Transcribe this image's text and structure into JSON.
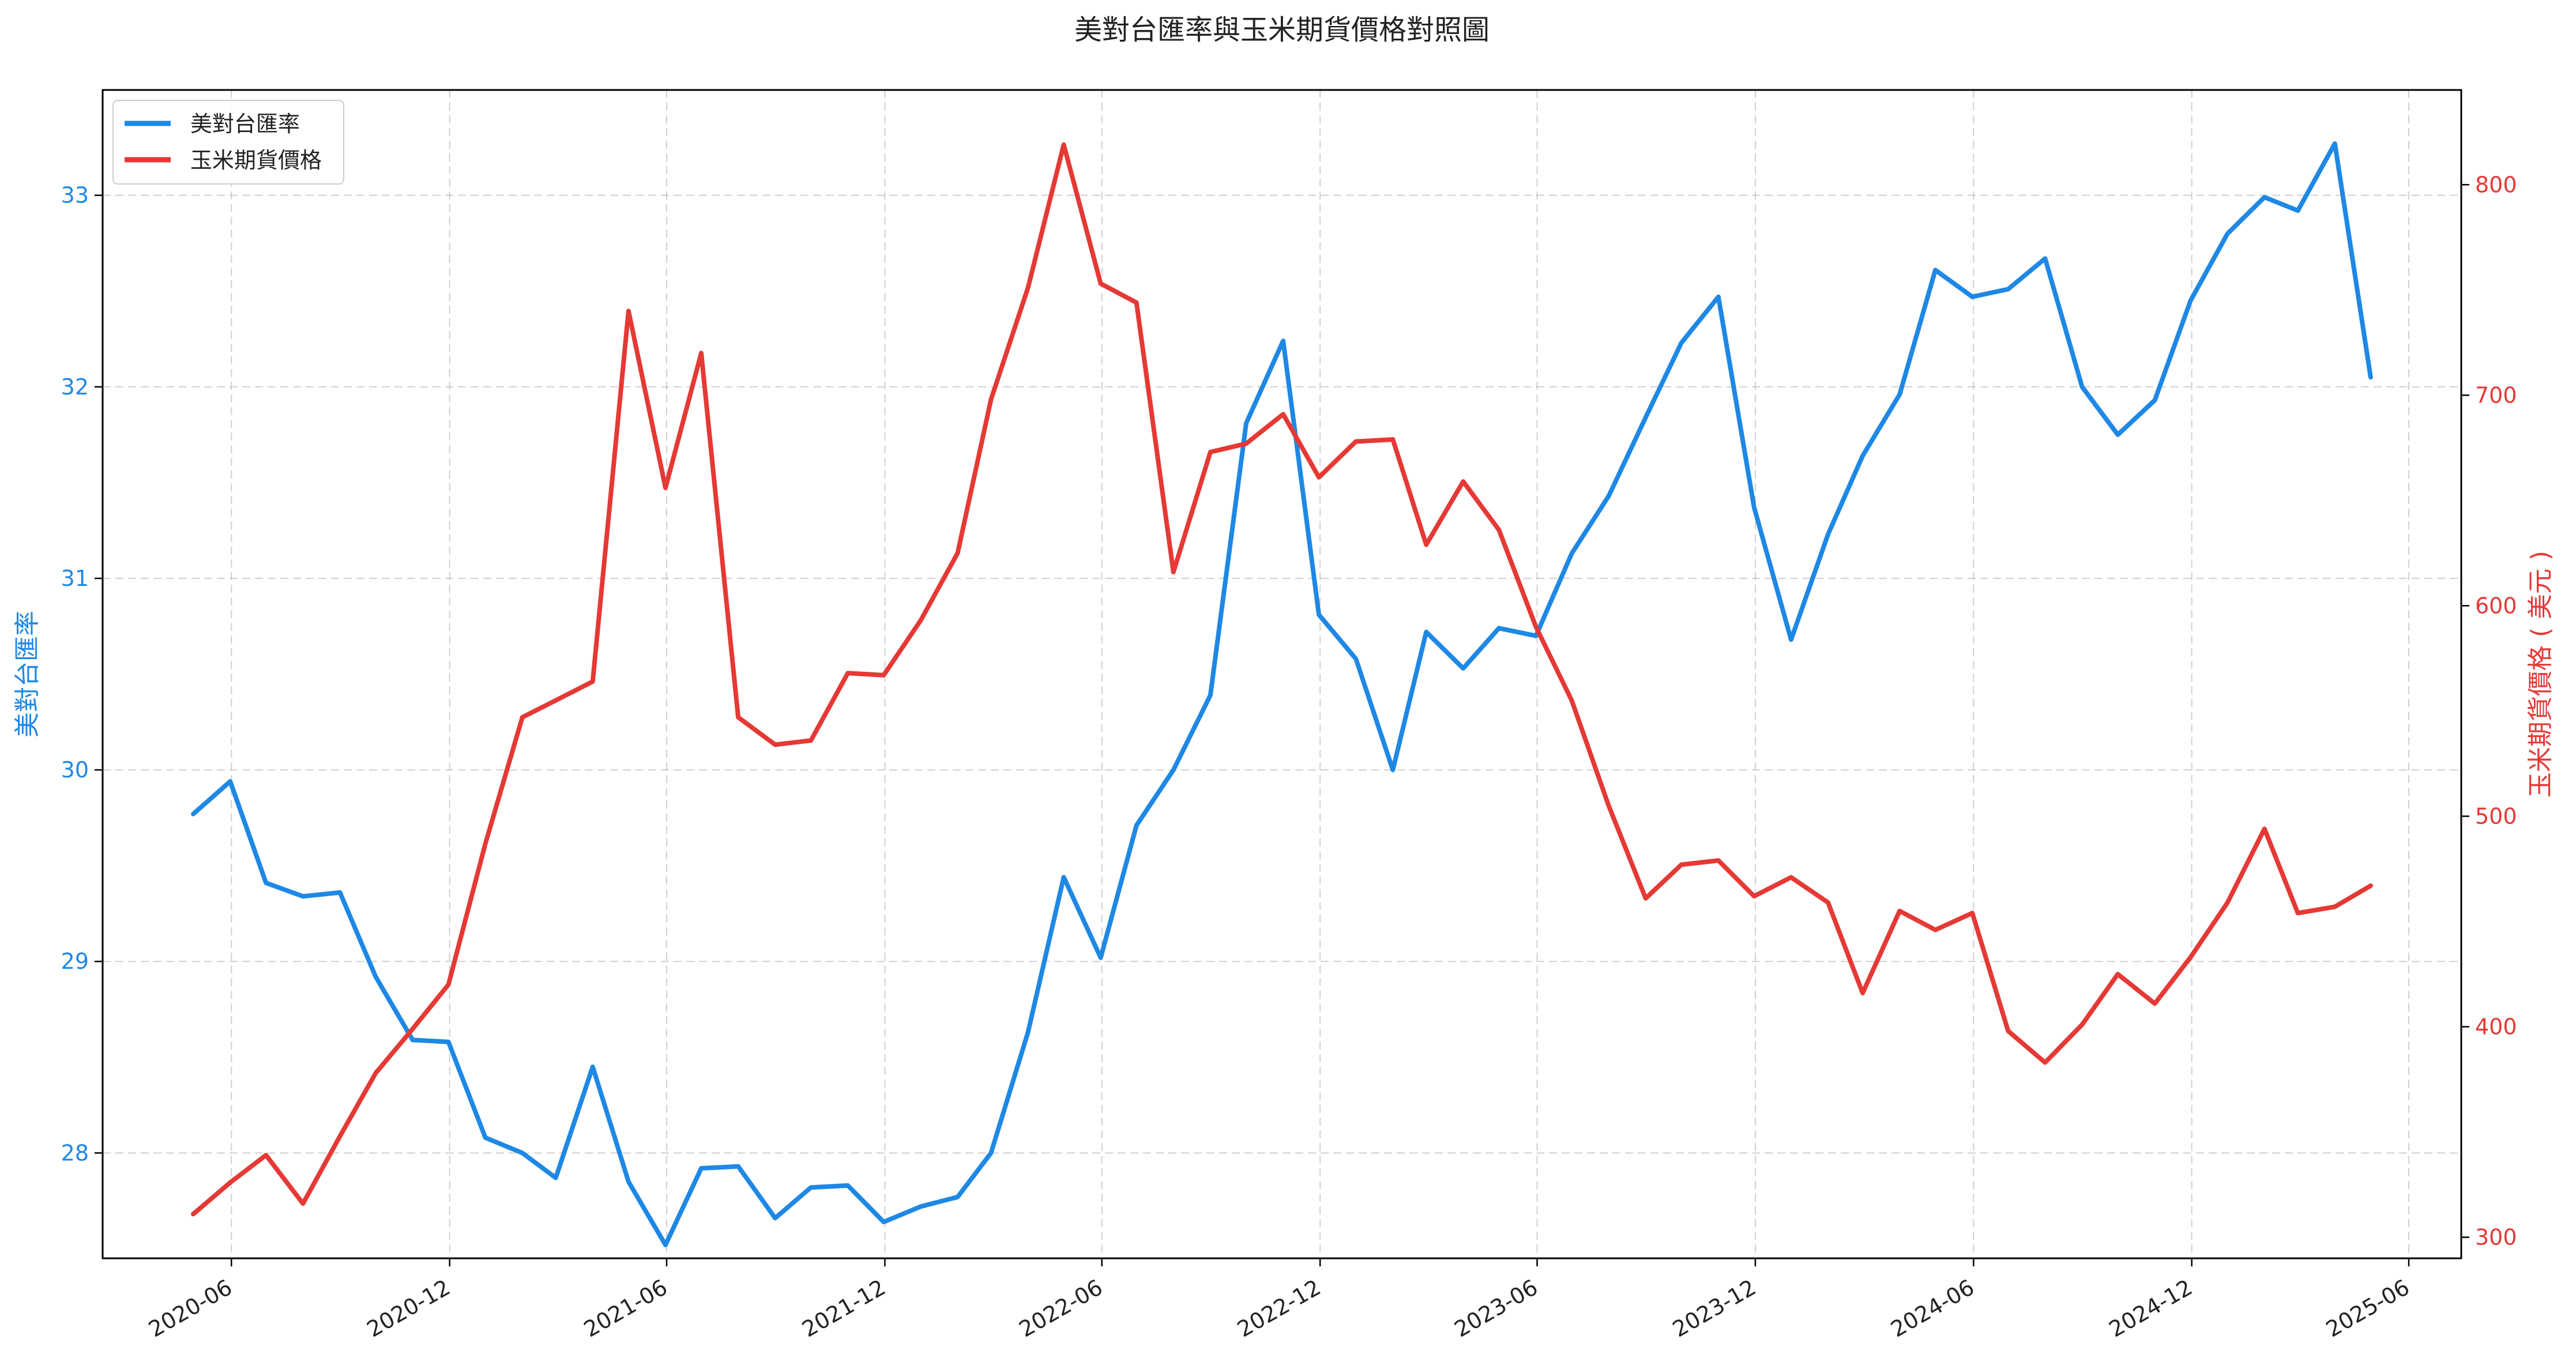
{
  "chart_data": {
    "type": "line",
    "title": "美對台匯率與玉米期貨價格對照圖",
    "xlabel": "",
    "x_tick_labels": [
      "2020-06",
      "2020-12",
      "2021-06",
      "2021-12",
      "2022-06",
      "2022-12",
      "2023-06",
      "2023-12",
      "2024-06",
      "2024-12",
      "2025-06"
    ],
    "x_range": [
      "2020-02-14",
      "2025-07-15"
    ],
    "dates": [
      "2020-04-30",
      "2020-05-31",
      "2020-06-30",
      "2020-07-31",
      "2020-08-31",
      "2020-09-30",
      "2020-10-31",
      "2020-11-30",
      "2020-12-31",
      "2021-01-31",
      "2021-02-28",
      "2021-03-31",
      "2021-04-30",
      "2021-05-31",
      "2021-06-30",
      "2021-07-31",
      "2021-08-31",
      "2021-09-30",
      "2021-10-31",
      "2021-11-30",
      "2021-12-31",
      "2022-01-31",
      "2022-02-28",
      "2022-03-31",
      "2022-04-30",
      "2022-05-31",
      "2022-06-30",
      "2022-07-31",
      "2022-08-31",
      "2022-09-30",
      "2022-10-31",
      "2022-11-30",
      "2022-12-31",
      "2023-01-31",
      "2023-02-28",
      "2023-03-31",
      "2023-04-30",
      "2023-05-31",
      "2023-06-30",
      "2023-07-31",
      "2023-08-31",
      "2023-09-30",
      "2023-10-31",
      "2023-11-30",
      "2023-12-31",
      "2024-01-31",
      "2024-02-29",
      "2024-03-31",
      "2024-04-30",
      "2024-05-31",
      "2024-06-30",
      "2024-07-31",
      "2024-08-31",
      "2024-09-30",
      "2024-10-31",
      "2024-11-30",
      "2024-12-31",
      "2025-01-31",
      "2025-02-28",
      "2025-03-31",
      "2025-04-30"
    ],
    "left_axis": {
      "label": "美對台匯率",
      "ylim": [
        27.45,
        33.55
      ],
      "ticks": [
        28,
        29,
        30,
        31,
        32,
        33
      ],
      "color": "#1e88e5"
    },
    "right_axis": {
      "label": "玉米期貨價格 ( 美元 )",
      "ylim": [
        290,
        845
      ],
      "ticks": [
        300,
        400,
        500,
        600,
        700,
        800
      ],
      "color": "#e53935"
    },
    "series": [
      {
        "name": "美對台匯率",
        "axis": "left",
        "color": "#1e88e5",
        "values": [
          29.77,
          29.94,
          29.41,
          29.34,
          29.36,
          28.92,
          28.59,
          28.58,
          28.08,
          28.0,
          27.87,
          28.45,
          27.85,
          27.52,
          27.92,
          27.93,
          27.66,
          27.82,
          27.83,
          27.64,
          27.72,
          27.77,
          28.0,
          28.63,
          29.44,
          29.02,
          29.71,
          30.0,
          30.39,
          31.81,
          32.24,
          30.81,
          30.58,
          30.0,
          30.72,
          30.53,
          30.74,
          30.7,
          31.13,
          31.43,
          31.84,
          32.23,
          32.47,
          31.37,
          30.68,
          31.23,
          31.64,
          31.96,
          32.61,
          32.47,
          32.51,
          32.67,
          32.0,
          31.75,
          31.93,
          32.45,
          32.8,
          32.99,
          32.92,
          33.27,
          32.05
        ]
      },
      {
        "name": "玉米期貨價格",
        "axis": "right",
        "color": "#e53935",
        "values": [
          311,
          326,
          339,
          316,
          348,
          378,
          399,
          420,
          487,
          547,
          555,
          564,
          740,
          656,
          720,
          547,
          534,
          536,
          568,
          567,
          593,
          625,
          698,
          751,
          819,
          753,
          744,
          616,
          673,
          677,
          691,
          661,
          678,
          679,
          629,
          659,
          636,
          590,
          555,
          505,
          461,
          477,
          479,
          462,
          471,
          459,
          416,
          455,
          446,
          454,
          398,
          383,
          401,
          425,
          411,
          433,
          459,
          494,
          454,
          457,
          467
        ]
      }
    ],
    "legend": {
      "placement": "top-left",
      "entries": [
        "美對台匯率",
        "玉米期貨價格"
      ]
    },
    "grid": true
  }
}
